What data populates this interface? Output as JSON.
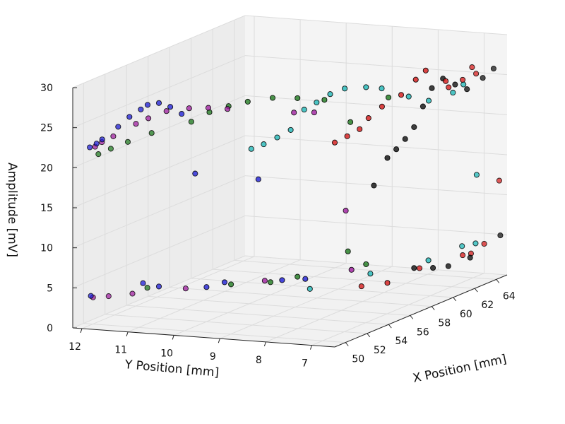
{
  "chart_data": {
    "type": "scatter",
    "projection": "3d",
    "xlabel": "X Position [mm]",
    "ylabel": "Y Position [mm]",
    "zlabel": "Amplitude [mV]",
    "x_ticks": [
      "50",
      "52",
      "54",
      "56",
      "58",
      "60",
      "62",
      "64"
    ],
    "y_ticks": [
      "12",
      "11",
      "10",
      "9",
      "8",
      "7"
    ],
    "z_ticks": [
      "0",
      "5",
      "10",
      "15",
      "20",
      "25",
      "30"
    ],
    "xlim": [
      49,
      65
    ],
    "ylim": [
      6.5,
      12.2
    ],
    "zlim": [
      0,
      30
    ],
    "grid": true,
    "colors": {
      "blue": "#1f1fd6",
      "purple": "#a01fa0",
      "green": "#1f7a1f",
      "cyan": "#22b8b8",
      "red": "#d61f1f",
      "black": "#111111",
      "pane": "#f1f1f1",
      "grid": "#dcdcdc"
    },
    "series": [
      {
        "color": "#1f1fd6",
        "points": [
          [
            49.3,
            11.9,
            22.5
          ],
          [
            49.5,
            11.8,
            22.9
          ],
          [
            49.6,
            11.7,
            23.4
          ],
          [
            49.8,
            11.4,
            25.0
          ],
          [
            50.0,
            11.2,
            26.2
          ],
          [
            50.2,
            11.0,
            27.1
          ],
          [
            50.4,
            10.9,
            27.6
          ],
          [
            50.6,
            10.7,
            27.8
          ],
          [
            50.8,
            10.5,
            27.3
          ],
          [
            51.0,
            10.3,
            26.4
          ],
          [
            51.4,
            10.1,
            18.8
          ],
          [
            53.0,
            9.1,
            17.6
          ],
          [
            49.4,
            11.9,
            3.9
          ],
          [
            50.4,
            11.0,
            5.3
          ],
          [
            50.6,
            10.7,
            4.9
          ],
          [
            51.6,
            9.9,
            4.6
          ],
          [
            52.0,
            9.6,
            5.1
          ],
          [
            53.5,
            8.7,
            4.9
          ],
          [
            54.8,
            8.5,
            4.4
          ]
        ]
      },
      {
        "color": "#a01fa0",
        "points": [
          [
            49.8,
            11.9,
            22.3
          ],
          [
            50.0,
            11.8,
            22.8
          ],
          [
            50.2,
            11.6,
            23.5
          ],
          [
            50.6,
            11.2,
            25.0
          ],
          [
            50.9,
            11.0,
            25.6
          ],
          [
            51.3,
            10.7,
            26.4
          ],
          [
            51.7,
            10.3,
            26.7
          ],
          [
            52.2,
            10.0,
            26.6
          ],
          [
            52.7,
            9.7,
            26.3
          ],
          [
            54.6,
            8.7,
            25.2
          ],
          [
            55.2,
            8.4,
            25.0
          ],
          [
            56.0,
            7.9,
            12.5
          ],
          [
            49.6,
            11.9,
            3.6
          ],
          [
            50.2,
            11.7,
            3.5
          ],
          [
            50.7,
            11.3,
            3.7
          ],
          [
            51.8,
            10.4,
            4.1
          ],
          [
            53.6,
            9.1,
            4.6
          ],
          [
            56.1,
            7.8,
            5.1
          ]
        ]
      },
      {
        "color": "#1f7a1f",
        "points": [
          [
            50.1,
            11.9,
            21.2
          ],
          [
            50.4,
            11.7,
            21.8
          ],
          [
            50.7,
            11.4,
            22.6
          ],
          [
            51.2,
            11.0,
            23.6
          ],
          [
            51.9,
            10.3,
            24.9
          ],
          [
            52.3,
            10.0,
            26.0
          ],
          [
            52.8,
            9.7,
            26.6
          ],
          [
            53.3,
            9.4,
            27.0
          ],
          [
            53.9,
            9.0,
            27.3
          ],
          [
            54.5,
            8.6,
            27.1
          ],
          [
            55.3,
            8.2,
            26.6
          ],
          [
            56.0,
            7.8,
            23.6
          ],
          [
            57.4,
            7.3,
            26.1
          ],
          [
            56.2,
            7.9,
            7.3
          ],
          [
            50.8,
            11.0,
            4.5
          ],
          [
            52.6,
            9.6,
            4.5
          ],
          [
            53.7,
            9.0,
            4.4
          ],
          [
            54.5,
            8.6,
            4.8
          ],
          [
            56.6,
            7.6,
            5.6
          ]
        ]
      },
      {
        "color": "#22b8b8",
        "points": [
          [
            53.2,
            9.3,
            21.2
          ],
          [
            53.5,
            9.1,
            21.7
          ],
          [
            53.9,
            8.9,
            22.4
          ],
          [
            54.3,
            8.7,
            23.2
          ],
          [
            54.7,
            8.5,
            25.6
          ],
          [
            55.0,
            8.3,
            26.4
          ],
          [
            55.4,
            8.1,
            27.3
          ],
          [
            55.9,
            7.9,
            27.8
          ],
          [
            56.6,
            7.6,
            27.7
          ],
          [
            57.2,
            7.4,
            27.3
          ],
          [
            58.0,
            7.0,
            26.0
          ],
          [
            59.0,
            6.8,
            25.0
          ],
          [
            60.4,
            6.6,
            25.3
          ],
          [
            61.8,
            6.7,
            25.5
          ],
          [
            62.6,
            6.6,
            13.8
          ],
          [
            54.8,
            8.4,
            3.2
          ],
          [
            57.0,
            7.6,
            4.2
          ],
          [
            59.4,
            6.9,
            4.8
          ],
          [
            62.1,
            6.8,
            5.1
          ],
          [
            62.5,
            6.6,
            5.3
          ]
        ]
      },
      {
        "color": "#d61f1f",
        "points": [
          [
            55.4,
            8.0,
            21.3
          ],
          [
            55.7,
            7.8,
            22.0
          ],
          [
            56.0,
            7.6,
            22.8
          ],
          [
            56.4,
            7.5,
            24.0
          ],
          [
            56.8,
            7.3,
            25.3
          ],
          [
            57.3,
            7.0,
            26.6
          ],
          [
            57.8,
            6.8,
            28.3
          ],
          [
            58.3,
            6.7,
            29.2
          ],
          [
            59.3,
            6.5,
            27.4
          ],
          [
            60.0,
            6.6,
            26.2
          ],
          [
            61.3,
            6.6,
            26.4
          ],
          [
            62.6,
            6.7,
            27.2
          ],
          [
            63.4,
            6.8,
            25.9
          ],
          [
            64.7,
            6.6,
            11.9
          ],
          [
            56.6,
            7.7,
            2.8
          ],
          [
            57.3,
            7.3,
            3.0
          ],
          [
            59.0,
            7.0,
            4.0
          ],
          [
            61.3,
            6.6,
            4.5
          ],
          [
            62.5,
            6.7,
            4.0
          ],
          [
            63.3,
            6.6,
            4.8
          ]
        ]
      },
      {
        "color": "#111111",
        "points": [
          [
            56.9,
            7.5,
            15.3
          ],
          [
            57.3,
            7.3,
            18.6
          ],
          [
            57.7,
            7.2,
            19.5
          ],
          [
            58.1,
            7.1,
            20.6
          ],
          [
            58.5,
            7.0,
            21.9
          ],
          [
            58.9,
            6.9,
            24.3
          ],
          [
            59.3,
            6.8,
            26.4
          ],
          [
            59.9,
            6.7,
            27.3
          ],
          [
            60.6,
            6.6,
            26.2
          ],
          [
            61.7,
            6.6,
            25.0
          ],
          [
            63.6,
            6.7,
            25.3
          ],
          [
            64.6,
            6.7,
            25.9
          ],
          [
            58.5,
            7.0,
            4.3
          ],
          [
            59.4,
            6.8,
            3.9
          ],
          [
            60.4,
            6.7,
            3.6
          ],
          [
            62.0,
            6.6,
            3.8
          ],
          [
            64.8,
            6.6,
            5.0
          ]
        ]
      }
    ]
  }
}
